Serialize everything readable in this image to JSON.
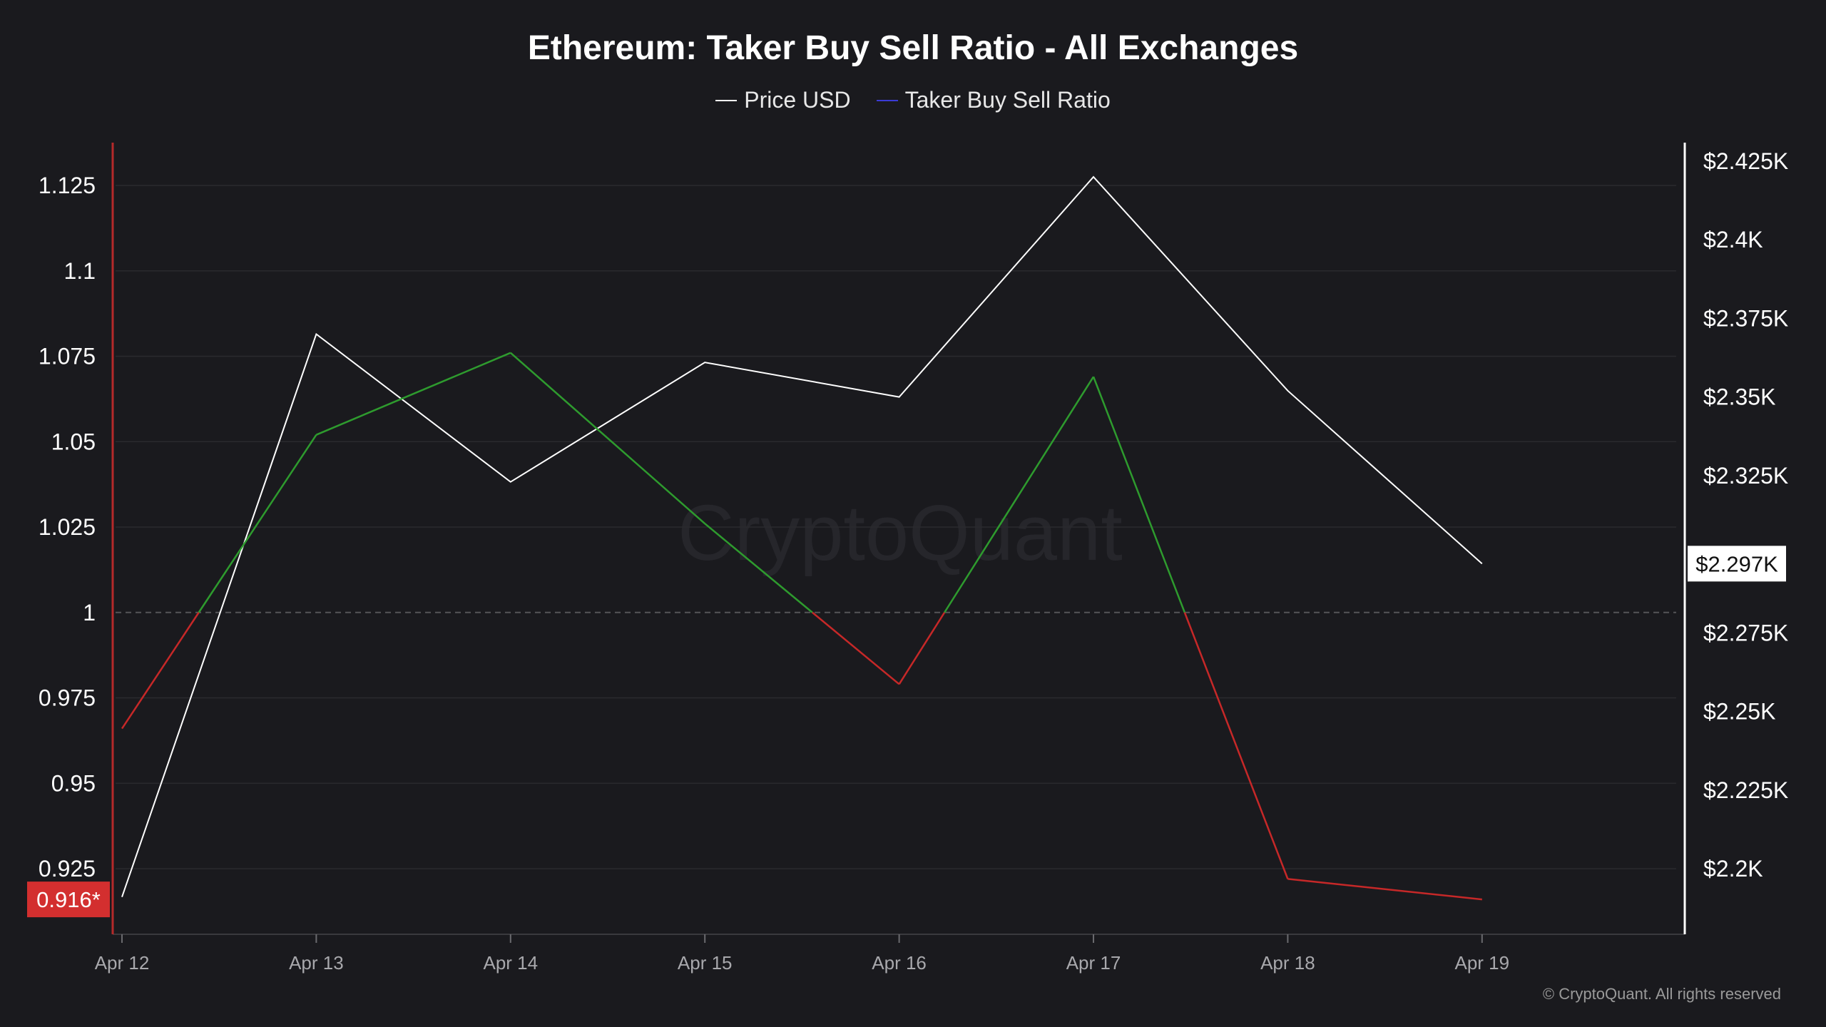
{
  "chart_data": {
    "type": "line",
    "title": "Ethereum: Taker Buy Sell Ratio - All Exchanges",
    "x": [
      "Apr 12",
      "Apr 13",
      "Apr 14",
      "Apr 15",
      "Apr 16",
      "Apr 17",
      "Apr 18",
      "Apr 19"
    ],
    "series": [
      {
        "name": "Price USD",
        "axis": "right",
        "color": "#ffffff",
        "values": [
          2191,
          2370,
          2323,
          2361,
          2350,
          2420,
          2352,
          2297
        ]
      },
      {
        "name": "Taker Buy Sell Ratio",
        "axis": "left",
        "color": "#3b3bd6",
        "above_color": "#2e9b2e",
        "below_color": "#c62828",
        "threshold": 1,
        "values": [
          0.966,
          1.052,
          1.076,
          1.026,
          0.979,
          1.069,
          0.922,
          0.916
        ]
      }
    ],
    "y_left": {
      "ticks": [
        0.925,
        0.95,
        0.975,
        1,
        1.025,
        1.05,
        1.075,
        1.1,
        1.125
      ],
      "tick_labels": [
        "0.925",
        "0.95",
        "0.975",
        "1",
        "1.025",
        "1.05",
        "1.075",
        "1.1",
        "1.125"
      ],
      "range": [
        0.915,
        1.137
      ]
    },
    "y_right": {
      "ticks": [
        2200,
        2225,
        2250,
        2275,
        2325,
        2350,
        2375,
        2400,
        2425
      ],
      "tick_labels": [
        "$2.2K",
        "$2.225K",
        "$2.25K",
        "$2.275K",
        "$2.325K",
        "$2.35K",
        "$2.375K",
        "$2.4K",
        "$2.425K"
      ],
      "range": [
        2180,
        2430
      ]
    },
    "current_labels": {
      "left": "0.916*",
      "right": "$2.297K"
    },
    "reference_line": 1,
    "grid": true,
    "legend_position": "top-center",
    "watermark": "CryptoQuant",
    "colors": {
      "background": "#1a1a1e",
      "grid": "#2a2a2e",
      "left_axis": "#b52a2a",
      "right_axis": "#ffffff",
      "badge_left": "#d32f2f",
      "badge_right": "#ffffff"
    }
  },
  "footer": {
    "copyright": "© CryptoQuant. All rights reserved"
  }
}
